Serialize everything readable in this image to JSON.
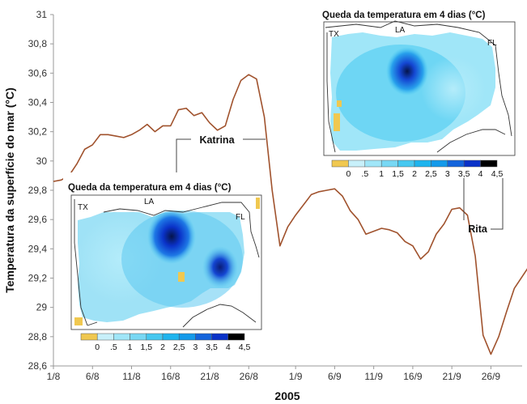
{
  "chart_data": {
    "type": "line",
    "xlabel": "2005",
    "ylabel": "Temperatura da superfície do mar (°C)",
    "ylim": [
      28.6,
      31
    ],
    "yticks": [
      "28,6",
      "28,8",
      "29",
      "29,2",
      "29,4",
      "29,6",
      "29,8",
      "30",
      "30,2",
      "30,4",
      "30,6",
      "30,8",
      "31"
    ],
    "xticks": [
      "1/8",
      "6/8",
      "11/8",
      "16/8",
      "21/8",
      "26/8",
      "1/9",
      "6/9",
      "11/9",
      "16/9",
      "21/9",
      "26/9"
    ],
    "x_day_offsets": [
      0,
      5,
      10,
      15,
      20,
      25,
      31,
      36,
      41,
      46,
      51,
      56
    ],
    "x_range_days": [
      0,
      60
    ],
    "grid": false,
    "line_color": "#a0522d",
    "series": [
      {
        "name": "",
        "points": [
          [
            "1/8",
            29.86
          ],
          [
            "2/8",
            29.87
          ],
          [
            "3/8",
            29.9
          ],
          [
            "4/8",
            29.98
          ],
          [
            "5/8",
            30.08
          ],
          [
            "6/8",
            30.11
          ],
          [
            "7/8",
            30.18
          ],
          [
            "8/8",
            30.18
          ],
          [
            "9/8",
            30.17
          ],
          [
            "10/8",
            30.16
          ],
          [
            "11/8",
            30.18
          ],
          [
            "12/8",
            30.21
          ],
          [
            "13/8",
            30.25
          ],
          [
            "14/8",
            30.2
          ],
          [
            "15/8",
            30.24
          ],
          [
            "16/8",
            30.24
          ],
          [
            "17/8",
            30.35
          ],
          [
            "18/8",
            30.36
          ],
          [
            "19/8",
            30.31
          ],
          [
            "20/8",
            30.33
          ],
          [
            "21/8",
            30.26
          ],
          [
            "22/8",
            30.21
          ],
          [
            "23/8",
            30.24
          ],
          [
            "24/8",
            30.42
          ],
          [
            "25/8",
            30.55
          ],
          [
            "26/8",
            30.59
          ],
          [
            "27/8",
            30.56
          ],
          [
            "28/8",
            30.3
          ],
          [
            "29/8",
            29.8
          ],
          [
            "30/8",
            29.42
          ],
          [
            "31/8",
            29.55
          ],
          [
            "1/9",
            29.63
          ],
          [
            "2/9",
            29.7
          ],
          [
            "3/9",
            29.77
          ],
          [
            "4/9",
            29.79
          ],
          [
            "5/9",
            29.8
          ],
          [
            "6/9",
            29.81
          ],
          [
            "7/9",
            29.76
          ],
          [
            "8/9",
            29.66
          ],
          [
            "9/9",
            29.6
          ],
          [
            "10/9",
            29.5
          ],
          [
            "11/9",
            29.52
          ],
          [
            "12/9",
            29.54
          ],
          [
            "13/9",
            29.53
          ],
          [
            "14/9",
            29.51
          ],
          [
            "15/9",
            29.45
          ],
          [
            "16/9",
            29.42
          ],
          [
            "17/9",
            29.33
          ],
          [
            "18/9",
            29.38
          ],
          [
            "19/9",
            29.5
          ],
          [
            "20/9",
            29.57
          ],
          [
            "21/9",
            29.67
          ],
          [
            "22/9",
            29.68
          ],
          [
            "23/9",
            29.63
          ],
          [
            "24/9",
            29.35
          ],
          [
            "25/9",
            28.81
          ],
          [
            "26/9",
            28.68
          ],
          [
            "27/9",
            28.8
          ],
          [
            "28/9",
            28.97
          ],
          [
            "29/9",
            29.13
          ],
          [
            "30/9",
            29.21
          ],
          [
            "30/9+",
            29.29
          ]
        ]
      }
    ],
    "annotations": [
      {
        "label": "Katrina",
        "near": "27/8"
      },
      {
        "label": "Rita",
        "near": "24/9"
      }
    ],
    "insets": [
      {
        "id": "katrina",
        "title": "Queda da temperatura em 4 dias (°C)",
        "states": [
          "TX",
          "LA",
          "FL"
        ],
        "colorbar_labels": [
          "0",
          ".5",
          "1",
          "1,5",
          "2",
          "2,5",
          "3",
          "3,5",
          "4",
          "4,5"
        ],
        "colorbar_colors": [
          "#f0c850",
          "#c8f0fa",
          "#a0e6f8",
          "#78d8f4",
          "#46c8f0",
          "#1eb4ee",
          "#149aea",
          "#1464dc",
          "#0a32c8",
          "#000000"
        ]
      },
      {
        "id": "rita",
        "title": "Queda da temperatura em 4 dias (°C)",
        "states": [
          "TX",
          "LA",
          "FL"
        ],
        "colorbar_labels": [
          "0",
          ".5",
          "1",
          "1,5",
          "2",
          "2,5",
          "3",
          "3,5",
          "4",
          "4,5"
        ],
        "colorbar_colors": [
          "#f0c850",
          "#c8f0fa",
          "#a0e6f8",
          "#78d8f4",
          "#46c8f0",
          "#1eb4ee",
          "#149aea",
          "#1464dc",
          "#0a32c8",
          "#000000"
        ]
      }
    ]
  }
}
